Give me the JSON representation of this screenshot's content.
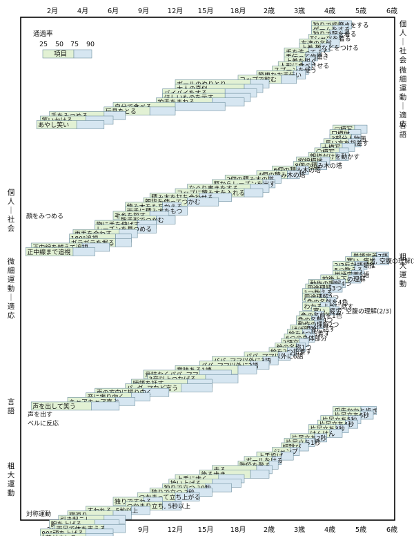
{
  "chart_data": {
    "type": "bar",
    "x_ticks": [
      "2月",
      "4月",
      "6月",
      "9月",
      "12月",
      "15月",
      "18月",
      "2歳",
      "3歳",
      "4歳",
      "5歳",
      "6歳"
    ],
    "legend": {
      "title": "通過率",
      "percents": [
        "25",
        "50",
        "75",
        "90"
      ],
      "sample_label": "項目"
    },
    "domains_right": [
      {
        "name": "個人－社会",
        "chars": [
          "個",
          "人",
          "｜",
          "社",
          "会"
        ]
      },
      {
        "name": "微細運動－適応",
        "chars": [
          "微",
          "細",
          "運",
          "動",
          "｜",
          "適",
          "応"
        ]
      },
      {
        "name": "言語",
        "chars": [
          "言",
          "語"
        ]
      },
      {
        "name": "粗大運動",
        "chars": [
          "粗",
          "大",
          "運",
          "動"
        ]
      }
    ],
    "domains_left": [
      {
        "name": "個人－社会",
        "chars": [
          "個",
          "人",
          "｜",
          "社",
          "会"
        ]
      },
      {
        "name": "微細運動－適応",
        "chars": [
          "微",
          "細",
          "運",
          "動",
          "｜",
          "適",
          "応"
        ]
      },
      {
        "name": "言語",
        "chars": [
          "言",
          "語"
        ]
      },
      {
        "name": "粗大運動",
        "chars": [
          "粗",
          "大",
          "運",
          "動"
        ]
      }
    ],
    "free_labels": [
      "顔をみつめる",
      "「アー」「ウー」などの発声",
      "声を出す",
      "ベルに反応",
      "対称運動"
    ],
    "items": [
      {
        "label": "独りで歯磨きをする",
        "p25": 3.4,
        "p50": 3.8,
        "p75": 4.3,
        "p90": 4.7
      },
      {
        "label": "ゲームをする",
        "p25": 3.4,
        "p50": 3.7,
        "p75": 4.1,
        "p90": 4.6
      },
      {
        "label": "独りで服を着る",
        "p25": 3.4,
        "p50": 3.7,
        "p75": 4.0,
        "p90": 4.4
      },
      {
        "label": "Tシャツを着る",
        "p25": 3.3,
        "p50": 3.6,
        "p75": 4.0,
        "p90": 4.3
      },
      {
        "label": "友達の名前",
        "p25": 3.0,
        "p50": 3.4,
        "p75": 3.9,
        "p90": 4.3
      },
      {
        "label": "上着,靴などをつける",
        "p25": 3.0,
        "p50": 3.3,
        "p75": 3.7,
        "p90": 4.0
      },
      {
        "label": "手を洗ってふく",
        "p25": 2.5,
        "p50": 2.9,
        "p75": 3.3,
        "p90": 3.7
      },
      {
        "label": "手伝って歯磨き",
        "p25": 2.5,
        "p50": 2.8,
        "p75": 3.2,
        "p90": 3.6
      },
      {
        "label": "上着を脱ぐ",
        "p25": 2.5,
        "p50": 2.8,
        "p75": 3.2,
        "p90": 3.5
      },
      {
        "label": "人形に食べさせる",
        "p25": 2.3,
        "p50": 2.7,
        "p75": 3.1,
        "p90": 3.4
      },
      {
        "label": "スプーンを使う",
        "p25": 2.1,
        "p50": 2.5,
        "p75": 2.9,
        "p90": 3.3
      },
      {
        "label": "簡単なお手伝い",
        "p25": 1.8,
        "p50": 2.2,
        "p75": 2.8,
        "p90": 3.2
      },
      {
        "label": "コップで飲む",
        "p25": 1.5,
        "p50": 1.9,
        "p75": 2.4,
        "p90": 2.9
      },
      {
        "label": "ボールのやりとり",
        "p25": 1.0,
        "p50": 1.3,
        "p75": 1.7,
        "p90": 2.0
      },
      {
        "label": "大人の真似",
        "p25": 1.0,
        "p50": 1.3,
        "p75": 1.6,
        "p90": 1.9
      },
      {
        "label": "バイバイをする",
        "p25": 0.9,
        "p50": 1.1,
        "p75": 1.4,
        "p90": 1.8
      },
      {
        "label": "ほしいものを示す",
        "p25": 0.9,
        "p50": 1.1,
        "p75": 1.4,
        "p90": 1.7
      },
      {
        "label": "拍手をまねる",
        "p25": 0.85,
        "p50": 1.05,
        "p75": 1.3,
        "p90": 1.6
      },
      {
        "label": "自分で食べる",
        "p25": 0.5,
        "p50": 0.75,
        "p75": 1.0,
        "p90": 1.4
      },
      {
        "label": "玩具をとる",
        "p25": 0.45,
        "p50": 0.6,
        "p75": 0.8,
        "p90": 1.0
      },
      {
        "label": "手をみつめる",
        "p25": 0.15,
        "p50": 0.3,
        "p75": 0.45,
        "p90": 0.6
      },
      {
        "label": "笑いかける",
        "p25": 0.1,
        "p50": 0.2,
        "p75": 0.35,
        "p90": 0.5
      },
      {
        "label": "あやし笑い",
        "p25": 0.08,
        "p50": 0.18,
        "p75": 0.3,
        "p90": 0.45
      },
      {
        "label": "□模写",
        "p25": 4.1,
        "p50": 4.4,
        "p75": 4.8,
        "p90": 5.2
      },
      {
        "label": "口模倣",
        "p25": 4.0,
        "p50": 4.2,
        "p75": 4.6,
        "p90": 5.0
      },
      {
        "label": "3部分人物画",
        "p25": 4.0,
        "p50": 4.3,
        "p75": 4.7,
        "p90": 5.0
      },
      {
        "label": "長い方を指差す",
        "p25": 3.8,
        "p50": 4.2,
        "p75": 4.6,
        "p90": 5.0
      },
      {
        "label": "十模写",
        "p25": 3.7,
        "p50": 4.0,
        "p75": 4.4,
        "p90": 4.8
      },
      {
        "label": "〇模写",
        "p25": 3.5,
        "p50": 3.8,
        "p75": 4.3,
        "p90": 4.6
      },
      {
        "label": "親指だけを動かす",
        "p25": 3.3,
        "p50": 3.7,
        "p75": 4.2,
        "p90": 4.6
      },
      {
        "label": "縦線模倣",
        "p25": 2.9,
        "p50": 3.3,
        "p75": 3.7,
        "p90": 4.0
      },
      {
        "label": "8個の積み木の塔",
        "p25": 2.8,
        "p50": 3.2,
        "p75": 3.6,
        "p90": 3.9
      },
      {
        "label": "6個の積み木の塔",
        "p25": 2.1,
        "p50": 2.5,
        "p75": 2.9,
        "p90": 3.3
      },
      {
        "label": "4個の積み木の塔",
        "p25": 1.8,
        "p50": 2.1,
        "p75": 2.6,
        "p90": 3.0
      },
      {
        "label": "2個の積み木の塔",
        "p25": 1.4,
        "p50": 1.7,
        "p75": 2.0,
        "p90": 2.4
      },
      {
        "label": "瓶からレーズンを出す",
        "p25": 1.3,
        "p50": 1.6,
        "p75": 1.9,
        "p90": 2.2
      },
      {
        "label": "なぐり書きをする",
        "p25": 1.1,
        "p50": 1.4,
        "p75": 1.7,
        "p90": 2.0
      },
      {
        "label": "コップに積み木を入れる",
        "p25": 1.0,
        "p50": 1.3,
        "p75": 1.6,
        "p90": 1.9
      },
      {
        "label": "積み木を打ち合わせる",
        "p25": 0.8,
        "p50": 1.0,
        "p75": 1.2,
        "p90": 1.45
      },
      {
        "label": "親指を使ってつかむ",
        "p25": 0.75,
        "p50": 0.9,
        "p75": 1.1,
        "p90": 1.35
      },
      {
        "label": "積み木をもちかえる",
        "p25": 0.6,
        "p50": 0.75,
        "p75": 0.9,
        "p90": 1.05
      },
      {
        "label": "両手に積み木をもつ",
        "p25": 0.6,
        "p50": 0.75,
        "p75": 0.9,
        "p90": 1.1
      },
      {
        "label": "毛糸を探す",
        "p25": 0.5,
        "p50": 0.65,
        "p75": 0.8,
        "p90": 0.95
      },
      {
        "label": "熊手形でつかむ",
        "p25": 0.55,
        "p50": 0.7,
        "p75": 0.85,
        "p90": 1.0
      },
      {
        "label": "物に手を伸ばす",
        "p25": 0.4,
        "p50": 0.55,
        "p75": 0.7,
        "p90": 0.85
      },
      {
        "label": "レーズンを見つめる",
        "p25": 0.4,
        "p50": 0.55,
        "p75": 0.7,
        "p90": 0.85
      },
      {
        "label": "両手を合わす",
        "p25": 0.28,
        "p50": 0.4,
        "p75": 0.55,
        "p90": 0.7
      },
      {
        "label": "180°追視",
        "p25": 0.26,
        "p50": 0.38,
        "p75": 0.52,
        "p90": 0.65
      },
      {
        "label": "ガラガラを握る",
        "p25": 0.26,
        "p50": 0.38,
        "p75": 0.52,
        "p90": 0.65
      },
      {
        "label": "正中線を越えて追視",
        "p25": 0.05,
        "p50": 0.18,
        "p75": 0.33,
        "p90": 0.48
      },
      {
        "label": "正中線まで追視",
        "p25": 0.02,
        "p50": 0.12,
        "p75": 0.28,
        "p90": 0.4
      },
      {
        "label": "単語定義7語",
        "p25": 4.7,
        "p50": 5.1,
        "p75": 5.5,
        "p90": 5.9
      },
      {
        "label": "寒い, 疲労, 空腹の理解(3/3)",
        "p25": 4.5,
        "p50": 4.9,
        "p75": 5.4,
        "p90": 5.9
      },
      {
        "label": "2/3反対語類推",
        "p25": 4.1,
        "p50": 4.4,
        "p75": 4.8,
        "p90": 5.2
      },
      {
        "label": "5つ数える",
        "p25": 4.1,
        "p50": 4.4,
        "p75": 4.8,
        "p90": 5.1
      },
      {
        "label": "単語定義5語",
        "p25": 4.1,
        "p50": 4.4,
        "p75": 4.7,
        "p90": 5.0
      },
      {
        "label": "前後上下の理解",
        "p25": 3.7,
        "p50": 4.1,
        "p75": 4.6,
        "p90": 5.0
      },
      {
        "label": "動作の理解4つ",
        "p25": 3.3,
        "p50": 3.7,
        "p75": 4.1,
        "p90": 4.5
      },
      {
        "label": "用途理解3つ",
        "p25": 3.2,
        "p50": 3.6,
        "p75": 4.0,
        "p90": 4.4
      },
      {
        "label": "1つ数える",
        "p25": 3.1,
        "p50": 3.4,
        "p75": 3.7,
        "p90": 4.0
      },
      {
        "label": "用途理解2つ",
        "p25": 3.1,
        "p50": 3.3,
        "p75": 3.7,
        "p90": 4.0
      },
      {
        "label": "色の名前を4色",
        "p25": 3.2,
        "p50": 3.5,
        "p75": 3.9,
        "p90": 4.2
      },
      {
        "label": "わかるように話す",
        "p25": 3.1,
        "p50": 3.4,
        "p75": 3.7,
        "p90": 4.0
      },
      {
        "label": "寒い, 疲労, 空腹の理解(2/3)",
        "p25": 3.4,
        "p50": 3.7,
        "p75": 4.0,
        "p90": 4.3
      },
      {
        "label": "色の名前を1色",
        "p25": 3.0,
        "p50": 3.2,
        "p75": 3.5,
        "p90": 3.8
      },
      {
        "label": "色の名称4つ",
        "p25": 2.9,
        "p50": 3.1,
        "p75": 3.4,
        "p90": 3.6
      },
      {
        "label": "動作の理解2つ",
        "p25": 2.9,
        "p50": 3.2,
        "p75": 3.5,
        "p90": 3.8
      },
      {
        "label": "ほぼ明瞭に話す",
        "p25": 2.7,
        "p50": 3.0,
        "p75": 3.3,
        "p90": 3.5
      },
      {
        "label": "絵を4つ指差す",
        "p25": 2.6,
        "p50": 2.8,
        "p75": 3.1,
        "p90": 3.4
      },
      {
        "label": "6つの身体部分",
        "p25": 2.5,
        "p50": 2.8,
        "p75": 3.2,
        "p90": 3.5
      },
      {
        "label": "2語文",
        "p25": 2.4,
        "p50": 2.7,
        "p75": 3.0,
        "p90": 3.3
      },
      {
        "label": "絵の名称1つ",
        "p25": 2.2,
        "p50": 2.6,
        "p75": 2.9,
        "p90": 3.2
      },
      {
        "label": "絵を2つ指差す",
        "p25": 2.0,
        "p50": 2.3,
        "p75": 2.6,
        "p90": 2.9
      },
      {
        "label": "パパ, ママ以外に6語",
        "p25": 1.6,
        "p50": 1.9,
        "p75": 2.3,
        "p90": 2.7
      },
      {
        "label": "パパ, ママ以外に3語",
        "p25": 1.3,
        "p50": 1.6,
        "p75": 1.9,
        "p90": 2.3
      },
      {
        "label": "パパ, ママ以外に2語",
        "p25": 1.2,
        "p50": 1.4,
        "p75": 1.7,
        "p90": 2.0
      },
      {
        "label": "意味ある1語",
        "p25": 1.0,
        "p50": 1.2,
        "p75": 1.5,
        "p90": 1.8
      },
      {
        "label": "意味なくパパ, ママ",
        "p25": 0.75,
        "p50": 0.95,
        "p75": 1.2,
        "p90": 1.45
      },
      {
        "label": "3音以上つなげる",
        "p25": 0.78,
        "p50": 1.0,
        "p75": 1.25,
        "p90": 1.5
      },
      {
        "label": "喃語を話す",
        "p25": 0.65,
        "p50": 0.85,
        "p75": 1.1,
        "p90": 1.3
      },
      {
        "label": "パ, ダ, マなど言う",
        "p25": 0.6,
        "p50": 0.8,
        "p75": 1.05,
        "p90": 1.3
      },
      {
        "label": "声の方向に振り向く",
        "p25": 0.4,
        "p50": 0.55,
        "p75": 0.75,
        "p90": 0.95
      },
      {
        "label": "音に振り向く",
        "p25": 0.35,
        "p50": 0.5,
        "p75": 0.65,
        "p90": 0.8
      },
      {
        "label": "キャアキャア喜ぶ",
        "p25": 0.25,
        "p50": 0.38,
        "p75": 0.52,
        "p90": 0.68
      },
      {
        "label": "声を出して笑う",
        "p25": 0.05,
        "p50": 0.2,
        "p75": 0.38,
        "p90": 0.55
      },
      {
        "label": "爪先かかと歩き",
        "p25": 4.1,
        "p50": 4.5,
        "p75": 5.0,
        "p90": 5.5
      },
      {
        "label": "片足立ち6秒",
        "p25": 4.1,
        "p50": 4.5,
        "p75": 5.0,
        "p90": 5.4
      },
      {
        "label": "片足立ち5秒",
        "p25": 3.7,
        "p50": 4.1,
        "p75": 4.6,
        "p90": 5.0
      },
      {
        "label": "片足立ち4秒",
        "p25": 3.6,
        "p50": 4.0,
        "p75": 4.5,
        "p90": 4.9
      },
      {
        "label": "片足立ち3秒",
        "p25": 3.3,
        "p50": 3.7,
        "p75": 4.2,
        "p90": 4.6
      },
      {
        "label": "けんけん",
        "p25": 3.3,
        "p50": 3.6,
        "p75": 4.0,
        "p90": 4.4
      },
      {
        "label": "片足立ち2秒",
        "p25": 2.7,
        "p50": 3.1,
        "p75": 3.5,
        "p90": 3.9
      },
      {
        "label": "片足立ち1秒",
        "p25": 2.5,
        "p50": 2.9,
        "p75": 3.2,
        "p90": 3.5
      },
      {
        "label": "幅跳び",
        "p25": 2.4,
        "p50": 2.7,
        "p75": 3.0,
        "p90": 3.3
      },
      {
        "label": "ジャンプ",
        "p25": 2.1,
        "p50": 2.4,
        "p75": 2.7,
        "p90": 3.0
      },
      {
        "label": "上手投げ",
        "p25": 1.8,
        "p50": 2.1,
        "p75": 2.4,
        "p90": 2.8
      },
      {
        "label": "ボールをける",
        "p25": 1.6,
        "p50": 1.8,
        "p75": 2.1,
        "p90": 2.4
      },
      {
        "label": "階段を登る",
        "p25": 1.5,
        "p50": 1.7,
        "p75": 2.0,
        "p90": 2.3
      },
      {
        "label": "走る",
        "p25": 1.3,
        "p50": 1.5,
        "p75": 1.8,
        "p90": 2.1
      },
      {
        "label": "後ろ歩き",
        "p25": 1.2,
        "p50": 1.4,
        "p75": 1.7,
        "p90": 2.0
      },
      {
        "label": "上手に歩く",
        "p25": 1.0,
        "p50": 1.15,
        "p75": 1.35,
        "p90": 1.6
      },
      {
        "label": "拾い上げる",
        "p25": 0.95,
        "p50": 1.1,
        "p75": 1.3,
        "p90": 1.55
      },
      {
        "label": "独りで立つ 10秒",
        "p25": 0.9,
        "p50": 1.05,
        "p75": 1.25,
        "p90": 1.45
      },
      {
        "label": "独りで立つ 2秒",
        "p25": 0.8,
        "p50": 0.95,
        "p75": 1.1,
        "p90": 1.3
      },
      {
        "label": "つかまって立ち上がる",
        "p25": 0.7,
        "p50": 0.85,
        "p75": 1.0,
        "p90": 1.2
      },
      {
        "label": "独りですわる",
        "p25": 0.5,
        "p50": 0.6,
        "p75": 0.75,
        "p90": 0.9
      },
      {
        "label": "つかまり立ち, 5秒以上",
        "p25": 0.6,
        "p50": 0.75,
        "p75": 0.9,
        "p90": 1.05
      },
      {
        "label": "すわれる, 5秒以上",
        "p25": 0.35,
        "p50": 0.5,
        "p75": 0.65,
        "p90": 0.8
      },
      {
        "label": "寝返り",
        "p25": 0.25,
        "p50": 0.35,
        "p75": 0.5,
        "p90": 0.65
      },
      {
        "label": "引き起こし",
        "p25": 0.2,
        "p50": 0.3,
        "p75": 0.45,
        "p90": 0.6
      },
      {
        "label": "胸を上げる",
        "p25": 0.15,
        "p50": 0.25,
        "p75": 0.4,
        "p90": 0.55
      },
      {
        "label": "両足で体を支える",
        "p25": 0.18,
        "p50": 0.3,
        "p75": 0.45,
        "p90": 0.6
      },
      {
        "label": "90°頭を上げる",
        "p25": 0.1,
        "p50": 0.2,
        "p75": 0.35,
        "p90": 0.5
      },
      {
        "label": "首がすわる",
        "p25": 0.12,
        "p50": 0.22,
        "p75": 0.35,
        "p90": 0.5
      },
      {
        "label": "45°頭を上げる",
        "p25": 0.02,
        "p50": 0.1,
        "p75": 0.22,
        "p90": 0.35
      },
      {
        "label": "頭を上げる",
        "p25": 0.0,
        "p50": 0.05,
        "p75": 0.15,
        "p90": 0.25
      }
    ]
  }
}
